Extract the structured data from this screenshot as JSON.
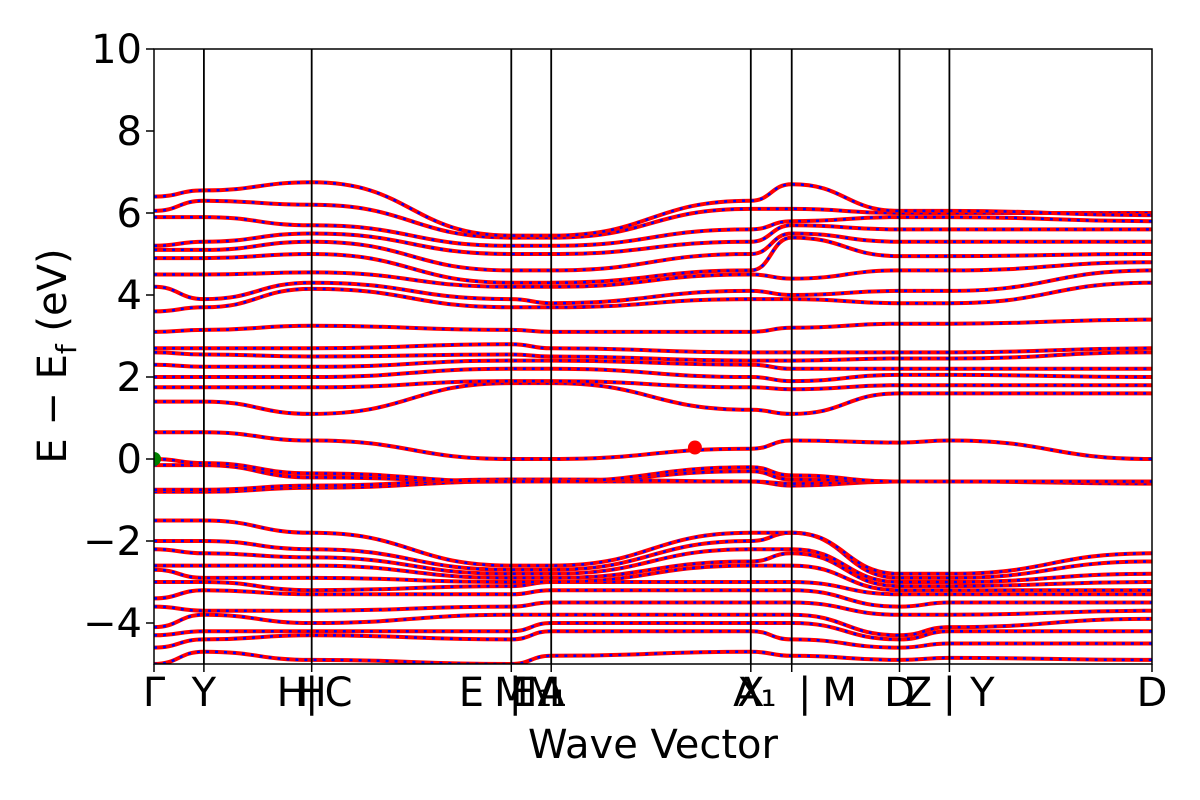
{
  "chart_data": {
    "type": "line",
    "title": "",
    "xlabel": "Wave Vector",
    "ylabel": "E − E_f (eV)",
    "ylabel_main": "E − E",
    "ylabel_sub": "f",
    "ylabel_tail": " (eV)",
    "ylim": [
      -5,
      10
    ],
    "yticks": [
      -4,
      -2,
      0,
      2,
      4,
      6,
      8,
      10
    ],
    "ytick_labels": [
      "−4",
      "−2",
      "0",
      "2",
      "4",
      "6",
      "8",
      "10"
    ],
    "xlim": [
      0,
      1
    ],
    "kpoint_positions": [
      0.0,
      0.05,
      0.158,
      0.358,
      0.398,
      0.598,
      0.639,
      0.747,
      0.797,
      1.0
    ],
    "kpoint_labels": [
      {
        "x": 0.0,
        "label": "Γ"
      },
      {
        "x": 0.05,
        "label": "Y"
      },
      {
        "x": 0.138,
        "label": "H"
      },
      {
        "x": 0.158,
        "label": "H"
      },
      {
        "x": 0.158,
        "label": "|"
      },
      {
        "x": 0.185,
        "label": "C"
      },
      {
        "x": 0.318,
        "label": "E"
      },
      {
        "x": 0.358,
        "label": "M"
      },
      {
        "x": 0.362,
        "label": "|"
      },
      {
        "x": 0.378,
        "label": "E₁"
      },
      {
        "x": 0.39,
        "label": "M"
      },
      {
        "x": 0.398,
        "label": "A"
      },
      {
        "x": 0.406,
        "label": "₁"
      },
      {
        "x": 0.598,
        "label": "X"
      },
      {
        "x": 0.602,
        "label": "A₁"
      },
      {
        "x": 0.652,
        "label": "|"
      },
      {
        "x": 0.687,
        "label": "M"
      },
      {
        "x": 0.747,
        "label": "D"
      },
      {
        "x": 0.766,
        "label": "Z"
      },
      {
        "x": 0.797,
        "label": "|"
      },
      {
        "x": 0.83,
        "label": "Y"
      },
      {
        "x": 1.0,
        "label": "D"
      }
    ],
    "series": [
      {
        "style": "red-solid-blue-dotted",
        "color": "#ff0000",
        "overlay_color": "#0000ff"
      }
    ],
    "bands": [
      {
        "y": [
          -5.0,
          -4.7,
          -4.9,
          -5.0,
          -4.8,
          -4.7,
          -4.8,
          -4.9,
          -4.85,
          -4.9
        ]
      },
      {
        "y": [
          -4.6,
          -4.4,
          -4.3,
          -4.4,
          -4.2,
          -4.2,
          -4.4,
          -4.6,
          -4.5,
          -4.5
        ]
      },
      {
        "y": [
          -4.3,
          -4.2,
          -4.2,
          -4.2,
          -4.0,
          -4.0,
          -4.0,
          -4.4,
          -4.2,
          -4.2
        ]
      },
      {
        "y": [
          -4.1,
          -3.8,
          -4.0,
          -3.8,
          -3.8,
          -3.8,
          -3.8,
          -4.3,
          -4.1,
          -3.9
        ]
      },
      {
        "y": [
          -3.6,
          -3.7,
          -3.7,
          -3.6,
          -3.5,
          -3.5,
          -3.5,
          -3.8,
          -3.8,
          -3.7
        ]
      },
      {
        "y": [
          -3.4,
          -3.2,
          -3.3,
          -3.3,
          -3.2,
          -3.2,
          -3.2,
          -3.6,
          -3.5,
          -3.5
        ]
      },
      {
        "y": [
          -3.0,
          -3.0,
          -3.2,
          -3.1,
          -3.0,
          -3.0,
          -3.0,
          -3.3,
          -3.3,
          -3.3
        ]
      },
      {
        "y": [
          -2.7,
          -2.9,
          -2.9,
          -3.0,
          -3.0,
          -2.6,
          -2.6,
          -3.2,
          -3.2,
          -3.2
        ]
      },
      {
        "y": [
          -2.6,
          -2.6,
          -2.6,
          -2.9,
          -2.9,
          -2.5,
          -2.3,
          -3.1,
          -3.1,
          -3.0
        ]
      },
      {
        "y": [
          -2.2,
          -2.3,
          -2.4,
          -2.8,
          -2.8,
          -2.2,
          -2.2,
          -3.0,
          -3.0,
          -2.8
        ]
      },
      {
        "y": [
          -2.0,
          -2.0,
          -2.2,
          -2.7,
          -2.7,
          -2.0,
          -1.8,
          -2.9,
          -2.9,
          -2.5
        ]
      },
      {
        "y": [
          -1.5,
          -1.5,
          -1.8,
          -2.6,
          -2.6,
          -1.8,
          -1.8,
          -2.8,
          -2.8,
          -2.3
        ]
      },
      {
        "y": [
          -0.8,
          -0.8,
          -0.7,
          -0.55,
          -0.55,
          -0.55,
          -0.65,
          -0.55,
          -0.55,
          -0.55
        ]
      },
      {
        "y": [
          -0.75,
          -0.75,
          -0.65,
          -0.5,
          -0.5,
          -0.55,
          -0.6,
          -0.55,
          -0.55,
          -0.6
        ]
      },
      {
        "y": [
          -0.15,
          -0.15,
          -0.45,
          -0.55,
          -0.55,
          -0.3,
          -0.5,
          -0.55,
          -0.55,
          -0.55
        ]
      },
      {
        "y": [
          0.0,
          -0.1,
          -0.35,
          -0.55,
          -0.55,
          -0.2,
          -0.4,
          -0.55,
          -0.55,
          -0.55
        ]
      },
      {
        "y": [
          0.65,
          0.65,
          0.45,
          0.0,
          -0.0,
          0.25,
          0.45,
          0.4,
          0.45,
          0.0
        ]
      },
      {
        "y": [
          1.4,
          1.4,
          1.1,
          1.85,
          1.85,
          1.2,
          1.1,
          1.6,
          1.6,
          1.6
        ]
      },
      {
        "y": [
          1.75,
          1.75,
          1.75,
          1.9,
          1.9,
          1.75,
          1.7,
          1.8,
          1.8,
          1.8
        ]
      },
      {
        "y": [
          2.0,
          2.0,
          2.0,
          2.2,
          2.2,
          2.0,
          1.9,
          2.05,
          2.05,
          2.0
        ]
      },
      {
        "y": [
          2.3,
          2.25,
          2.25,
          2.4,
          2.4,
          2.3,
          2.2,
          2.2,
          2.2,
          2.2
        ]
      },
      {
        "y": [
          2.6,
          2.55,
          2.5,
          2.55,
          2.5,
          2.4,
          2.4,
          2.45,
          2.45,
          2.6
        ]
      },
      {
        "y": [
          2.7,
          2.7,
          2.7,
          2.8,
          2.7,
          2.6,
          2.6,
          2.6,
          2.6,
          2.7
        ]
      },
      {
        "y": [
          3.1,
          3.15,
          3.25,
          3.15,
          3.1,
          3.1,
          3.2,
          3.3,
          3.3,
          3.4
        ]
      },
      {
        "y": [
          3.6,
          3.7,
          4.15,
          3.7,
          3.7,
          3.9,
          3.9,
          3.8,
          3.8,
          4.3
        ]
      },
      {
        "y": [
          4.2,
          3.9,
          4.3,
          3.9,
          3.8,
          4.1,
          4.0,
          4.1,
          4.1,
          4.6
        ]
      },
      {
        "y": [
          4.5,
          4.5,
          4.55,
          4.2,
          4.2,
          4.5,
          4.4,
          4.6,
          4.6,
          4.8
        ]
      },
      {
        "y": [
          4.9,
          4.9,
          5.0,
          4.3,
          4.3,
          4.6,
          5.4,
          4.95,
          4.95,
          5.0
        ]
      },
      {
        "y": [
          5.1,
          5.1,
          5.3,
          4.6,
          4.6,
          5.0,
          5.5,
          5.3,
          5.3,
          5.3
        ]
      },
      {
        "y": [
          5.2,
          5.3,
          5.5,
          5.0,
          5.0,
          5.3,
          5.7,
          5.6,
          5.6,
          5.6
        ]
      },
      {
        "y": [
          5.9,
          5.9,
          5.7,
          5.2,
          5.2,
          5.6,
          5.8,
          5.9,
          5.9,
          5.8
        ]
      },
      {
        "y": [
          6.05,
          6.3,
          6.2,
          5.4,
          5.4,
          6.1,
          6.1,
          6.0,
          6.0,
          6.0
        ]
      },
      {
        "y": [
          6.4,
          6.55,
          6.75,
          5.45,
          5.45,
          6.3,
          6.7,
          6.05,
          6.05,
          5.95
        ]
      }
    ],
    "markers": [
      {
        "x": 0.0,
        "y": 0.0,
        "color": "#008000",
        "kind": "vbm"
      },
      {
        "x": 0.542,
        "y": 0.28,
        "color": "#ff0000",
        "kind": "cbm"
      }
    ]
  }
}
